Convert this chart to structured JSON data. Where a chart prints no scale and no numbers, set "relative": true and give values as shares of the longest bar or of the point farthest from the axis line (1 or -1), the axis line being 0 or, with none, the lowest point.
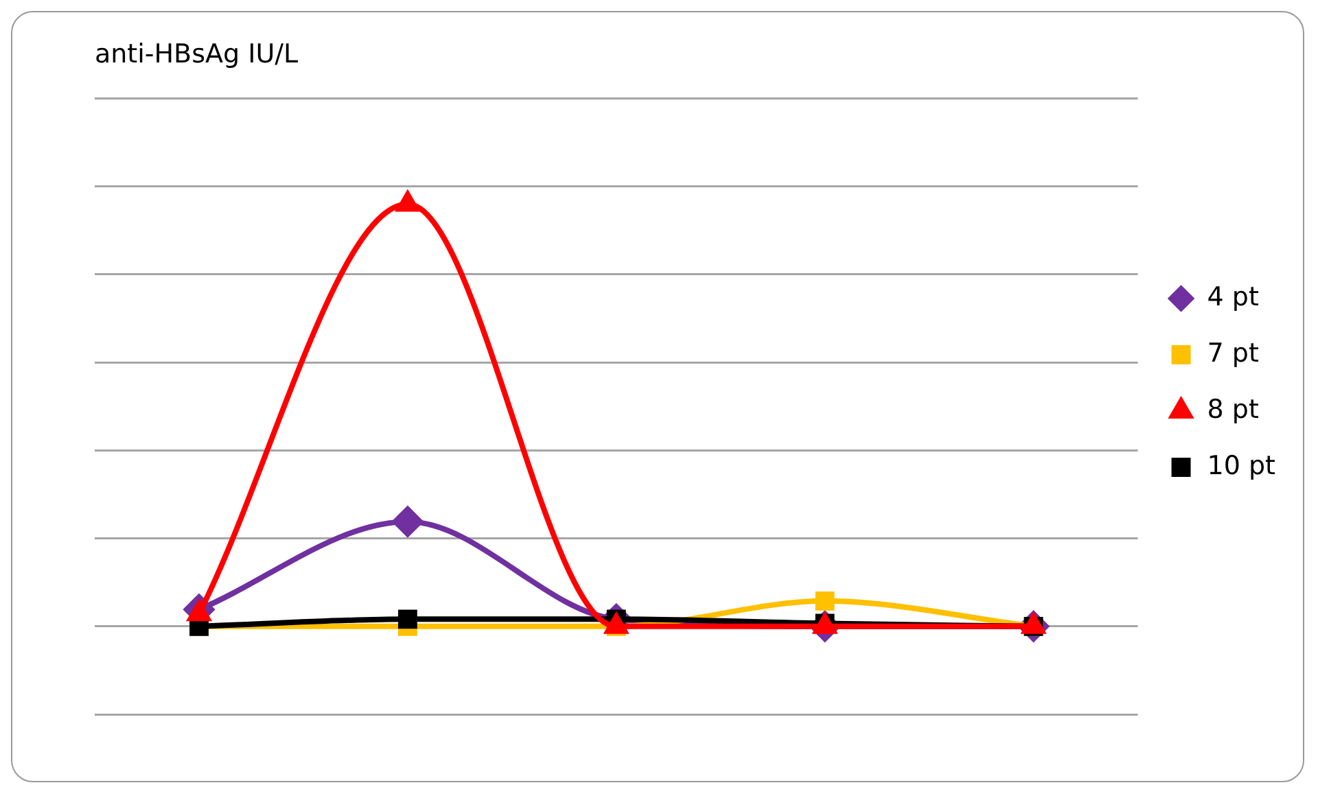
{
  "chart_data": {
    "type": "line",
    "title": "anti-HBsAg IU/L",
    "relative": true,
    "categories": [
      null,
      null,
      null,
      null,
      null
    ],
    "grid": "y",
    "legend": "right",
    "series": [
      {
        "name": "4 pt",
        "color": "#7030a0",
        "marker": "diamond",
        "values": [
          0.04,
          0.248,
          0.017,
          0,
          0
        ]
      },
      {
        "name": "7 pt",
        "color": "#ffc000",
        "marker": "square",
        "values": [
          0,
          0,
          0,
          0.06,
          0
        ]
      },
      {
        "name": "8 pt",
        "color": "#ff0000",
        "marker": "triangle",
        "values": [
          0.03,
          1,
          0,
          0,
          0
        ]
      },
      {
        "name": "10 pt",
        "color": "#000000",
        "marker": "square",
        "values": [
          0,
          0.017,
          0.017,
          0.007,
          0
        ]
      }
    ]
  }
}
